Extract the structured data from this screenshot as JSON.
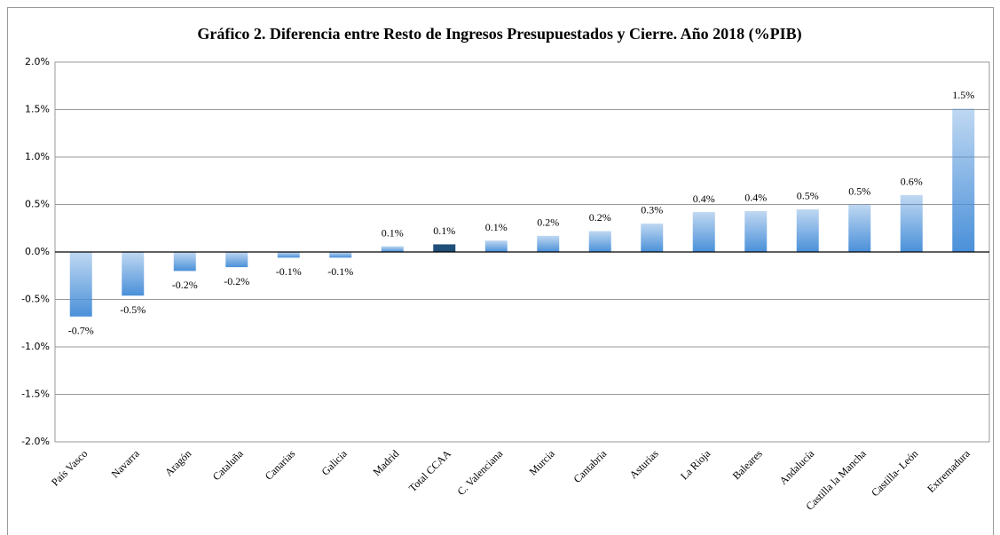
{
  "chart_data": {
    "type": "bar",
    "title": "Gráfico 2. Diferencia entre Resto de Ingresos Presupuestados y Cierre. Año 2018 (%PIB)",
    "categories": [
      "País Vasco",
      "Navarra",
      "Aragón",
      "Cataluña",
      "Canarias",
      "Galicia",
      "Madrid",
      "Total CCAA",
      "C. Valenciana",
      "Murcia",
      "Cantabria",
      "Asturias",
      "La Rioja",
      "Baleares",
      "Andalucía",
      "Castilla la Mancha",
      "Castilla- León",
      "Extremadura"
    ],
    "values": [
      -0.68,
      -0.46,
      -0.2,
      -0.16,
      -0.06,
      -0.06,
      0.06,
      0.08,
      0.12,
      0.17,
      0.22,
      0.3,
      0.42,
      0.43,
      0.45,
      0.5,
      0.6,
      1.51
    ],
    "value_labels": [
      "-0.7%",
      "-0.5%",
      "-0.2%",
      "-0.2%",
      "-0.1%",
      "-0.1%",
      "0.1%",
      "0.1%",
      "0.1%",
      "0.2%",
      "0.2%",
      "0.3%",
      "0.4%",
      "0.4%",
      "0.5%",
      "0.5%",
      "0.6%",
      "1.5%"
    ],
    "colors": [
      "#4a90d9",
      "#4a90d9",
      "#4a90d9",
      "#4a90d9",
      "#4a90d9",
      "#4a90d9",
      "#4a90d9",
      "#1f4e79",
      "#4a90d9",
      "#4a90d9",
      "#4a90d9",
      "#4a90d9",
      "#4a90d9",
      "#4a90d9",
      "#4a90d9",
      "#4a90d9",
      "#4a90d9",
      "#4a90d9"
    ],
    "ylim": [
      -2.0,
      2.0
    ],
    "yticks": [
      {
        "value": -2.0,
        "label": "-2.0%"
      },
      {
        "value": -1.5,
        "label": "-1.5%"
      },
      {
        "value": -1.0,
        "label": "-1.0%"
      },
      {
        "value": -0.5,
        "label": "-0.5%"
      },
      {
        "value": 0,
        "label": "0.0%"
      },
      {
        "value": 0.5,
        "label": "0.5%"
      },
      {
        "value": 1.0,
        "label": "1.0%"
      },
      {
        "value": 1.5,
        "label": "1.5%"
      },
      {
        "value": 2.0,
        "label": "2.0%"
      }
    ],
    "grid": true
  }
}
